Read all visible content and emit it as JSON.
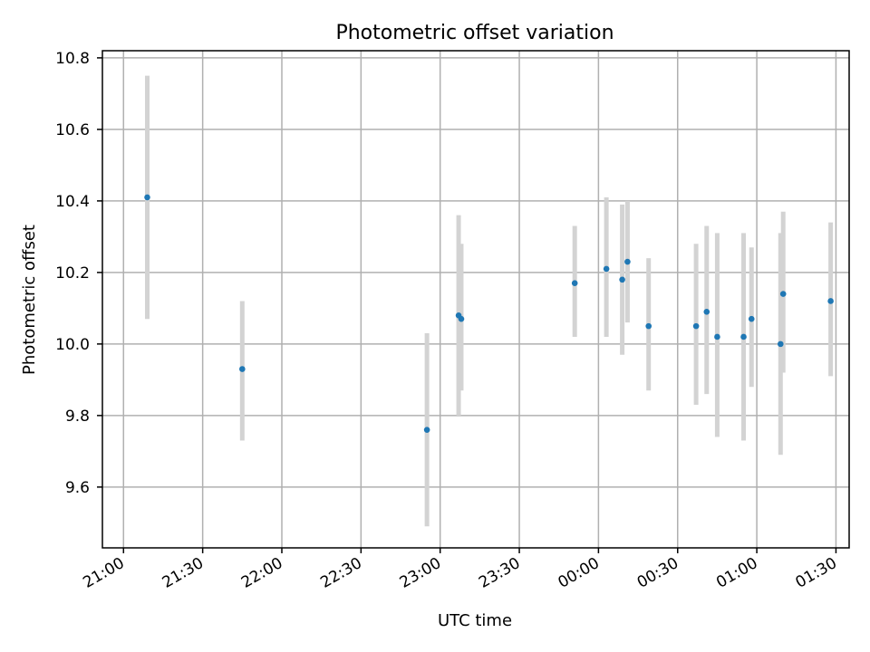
{
  "chart_data": {
    "type": "scatter",
    "title": "Photometric offset variation",
    "xlabel": "UTC time",
    "ylabel": "Photometric offset",
    "grid": true,
    "legend": "none",
    "x_is_time": true,
    "xlim": [
      "20:52",
      "01:35"
    ],
    "ylim": [
      9.43,
      10.82
    ],
    "x_ticks": [
      "21:00",
      "21:30",
      "22:00",
      "22:30",
      "23:00",
      "23:30",
      "00:00",
      "00:30",
      "01:00",
      "01:30"
    ],
    "y_ticks": [
      9.6,
      9.8,
      10.0,
      10.2,
      10.4,
      10.6,
      10.8
    ],
    "y_tick_labels": [
      "9.6",
      "9.8",
      "10.0",
      "10.2",
      "10.4",
      "10.6",
      "10.8"
    ],
    "point_color": "#1f77b4",
    "errorbar_color": "#d3d3d3",
    "series": [
      {
        "points": [
          {
            "x": "21:09",
            "y": 10.41,
            "low": 10.07,
            "high": 10.75
          },
          {
            "x": "21:45",
            "y": 9.93,
            "low": 9.73,
            "high": 10.12
          },
          {
            "x": "22:55",
            "y": 9.76,
            "low": 9.49,
            "high": 10.03
          },
          {
            "x": "23:07",
            "y": 10.08,
            "low": 9.8,
            "high": 10.36
          },
          {
            "x": "23:08",
            "y": 10.07,
            "low": 9.87,
            "high": 10.28
          },
          {
            "x": "23:51",
            "y": 10.17,
            "low": 10.02,
            "high": 10.33
          },
          {
            "x": "00:03",
            "y": 10.21,
            "low": 10.02,
            "high": 10.41
          },
          {
            "x": "00:09",
            "y": 10.18,
            "low": 9.97,
            "high": 10.39
          },
          {
            "x": "00:11",
            "y": 10.23,
            "low": 10.06,
            "high": 10.4
          },
          {
            "x": "00:19",
            "y": 10.05,
            "low": 9.87,
            "high": 10.24
          },
          {
            "x": "00:37",
            "y": 10.05,
            "low": 9.83,
            "high": 10.28
          },
          {
            "x": "00:41",
            "y": 10.09,
            "low": 9.86,
            "high": 10.33
          },
          {
            "x": "00:45",
            "y": 10.02,
            "low": 9.74,
            "high": 10.31
          },
          {
            "x": "00:55",
            "y": 10.02,
            "low": 9.73,
            "high": 10.31
          },
          {
            "x": "00:58",
            "y": 10.07,
            "low": 9.88,
            "high": 10.27
          },
          {
            "x": "01:09",
            "y": 10.0,
            "low": 9.69,
            "high": 10.31
          },
          {
            "x": "01:10",
            "y": 10.14,
            "low": 9.92,
            "high": 10.37
          },
          {
            "x": "01:28",
            "y": 10.12,
            "low": 9.91,
            "high": 10.34
          }
        ]
      }
    ]
  }
}
